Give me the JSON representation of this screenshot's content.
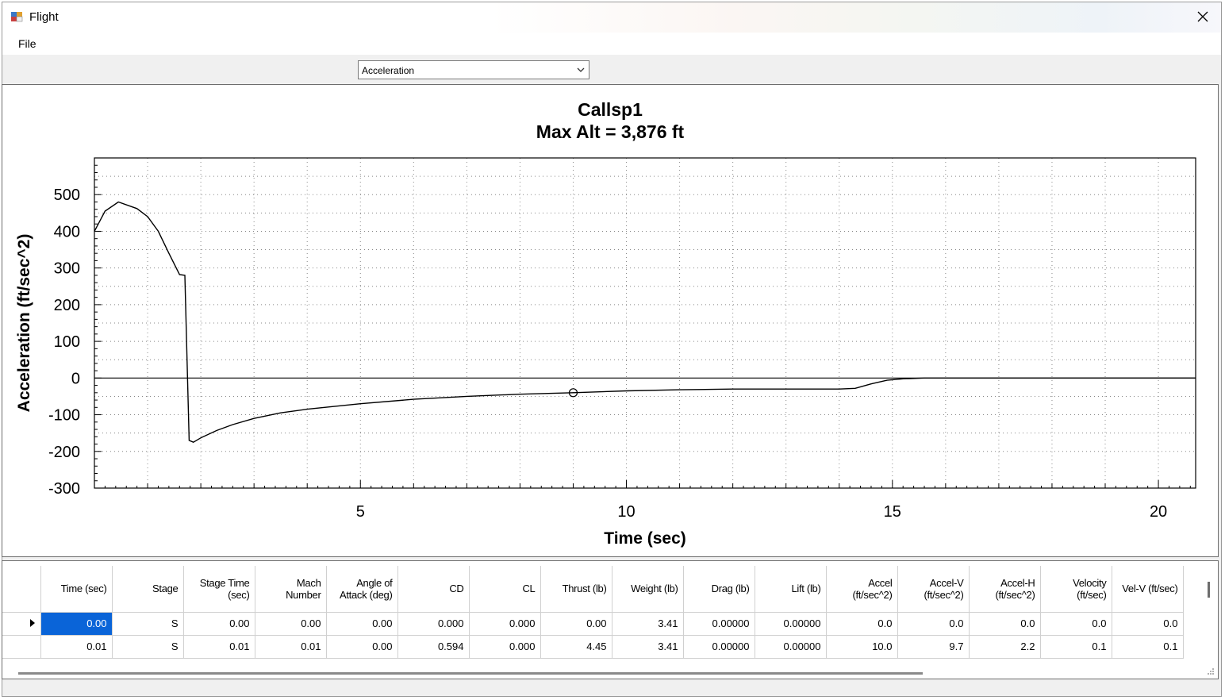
{
  "window": {
    "title": "Flight"
  },
  "menu": {
    "file_label": "File"
  },
  "selector": {
    "selected": "Acceleration"
  },
  "chart": {
    "title_line1": "Callsp1",
    "title_line2": "Max Alt = 3,876 ft"
  },
  "chart_data": {
    "type": "line",
    "title": "Callsp1\nMax Alt = 3,876 ft",
    "xlabel": "Time (sec)",
    "ylabel": "Acceleration (ft/sec^2)",
    "xlim": [
      0,
      20.7
    ],
    "ylim": [
      -300,
      600
    ],
    "x_ticks": [
      5,
      10,
      15,
      20
    ],
    "y_ticks": [
      500,
      400,
      300,
      200,
      100,
      0,
      -100,
      -200,
      -300
    ],
    "grid": true,
    "series": [
      {
        "x": [
          0.0,
          0.2,
          0.45,
          0.8,
          1.0,
          1.2,
          1.4,
          1.6,
          1.7,
          1.78,
          1.86,
          2.0,
          2.3,
          2.6,
          3.0,
          3.5,
          4.0,
          5.0,
          6.0,
          7.0,
          8.0,
          9.0,
          10.0,
          11.0,
          12.0,
          13.0,
          14.0,
          14.3,
          14.6,
          14.9,
          15.2,
          15.6,
          20.7
        ],
        "y": [
          400,
          455,
          480,
          462,
          440,
          400,
          340,
          282,
          280,
          -170,
          -175,
          -163,
          -143,
          -127,
          -110,
          -95,
          -85,
          -70,
          -58,
          -50,
          -44,
          -40,
          -35,
          -32,
          -30,
          -30,
          -30,
          -28,
          -16,
          -6,
          -2,
          0,
          0
        ]
      }
    ],
    "markers": [
      {
        "x": 9.0,
        "y": -40
      }
    ]
  },
  "table": {
    "columns": [
      "Time (sec)",
      "Stage",
      "Stage Time (sec)",
      "Mach Number",
      "Angle of Attack (deg)",
      "CD",
      "CL",
      "Thrust (lb)",
      "Weight (lb)",
      "Drag (lb)",
      "Lift (lb)",
      "Accel (ft/sec^2)",
      "Accel-V (ft/sec^2)",
      "Accel-H (ft/sec^2)",
      "Velocity (ft/sec)",
      "Vel-V (ft/sec)"
    ],
    "rows": [
      [
        "0.00",
        "S",
        "0.00",
        "0.00",
        "0.00",
        "0.000",
        "0.000",
        "0.00",
        "3.41",
        "0.00000",
        "0.00000",
        "0.0",
        "0.0",
        "0.0",
        "0.0",
        "0.0"
      ],
      [
        "0.01",
        "S",
        "0.01",
        "0.01",
        "0.00",
        "0.594",
        "0.000",
        "4.45",
        "3.41",
        "0.00000",
        "0.00000",
        "10.0",
        "9.7",
        "2.2",
        "0.1",
        "0.1"
      ]
    ]
  },
  "colors": {
    "selection": "#0a64d8"
  }
}
